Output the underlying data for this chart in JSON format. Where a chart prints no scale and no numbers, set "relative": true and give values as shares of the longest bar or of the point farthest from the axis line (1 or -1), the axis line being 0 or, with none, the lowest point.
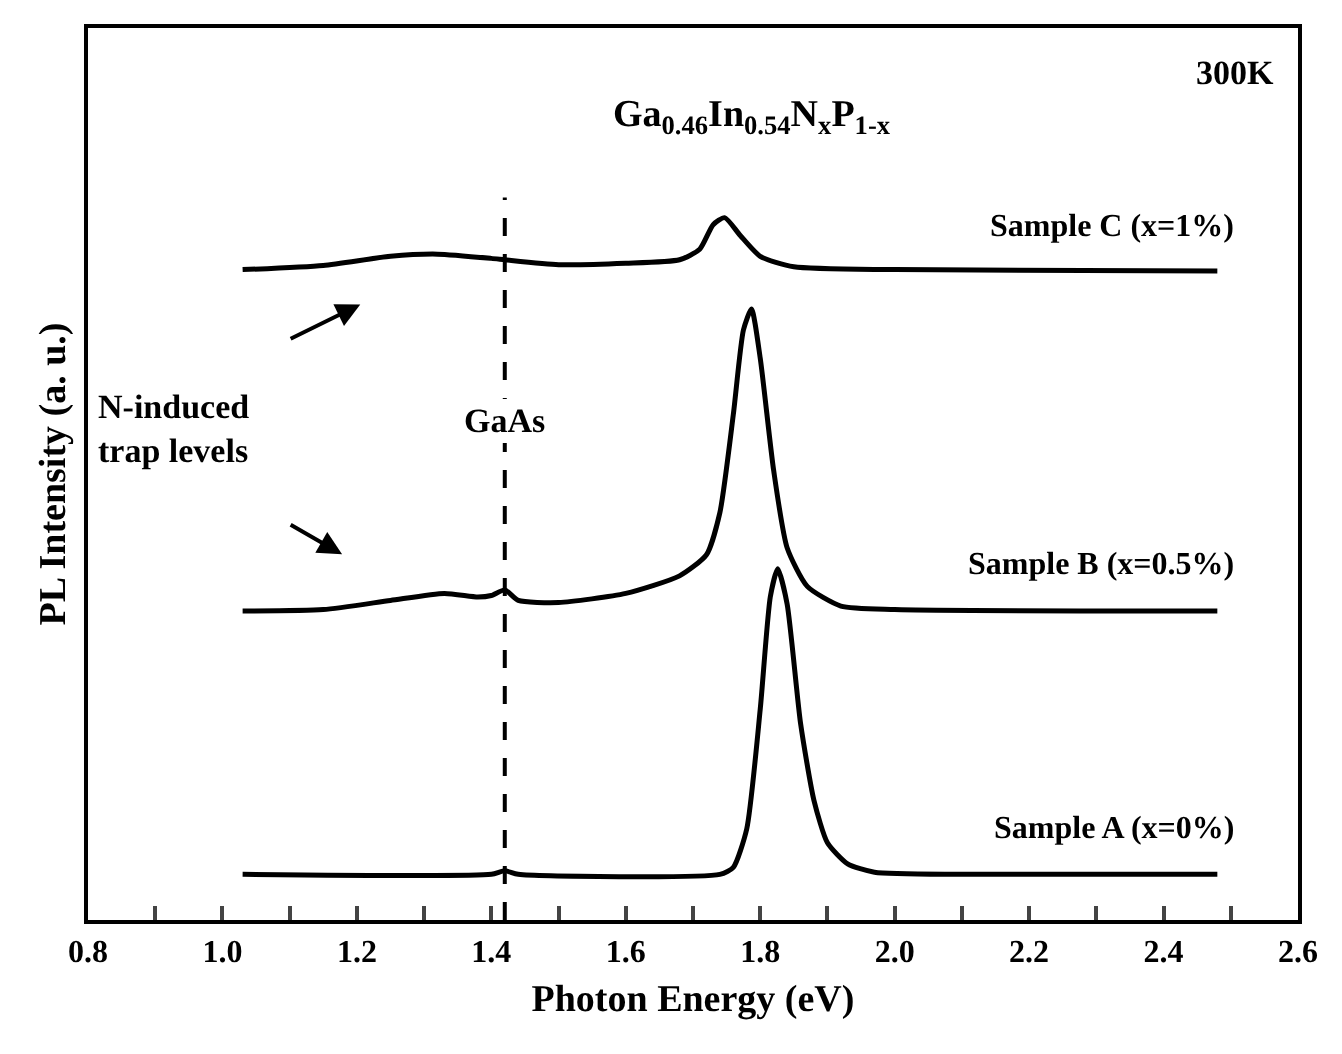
{
  "chart_data": {
    "type": "line",
    "relative": true,
    "title": "Ga$_{0.46}$In$_{0.54}$N$_{x}$P$_{1-x}$",
    "xlabel": "Photon Energy (eV)",
    "ylabel": "PL Intensity (a. u.)",
    "annotations": [
      "300K",
      "N-induced\ntrap levels"
    ],
    "xlim": [
      0.8,
      2.6
    ],
    "xticks": [
      0.8,
      {
        "value": 0.9,
        "label": null
      },
      {
        "value": 1.0,
        "label": "1.0"
      },
      {
        "value": 1.1,
        "label": null
      },
      1.2,
      {
        "value": 1.3,
        "label": null
      },
      1.4,
      {
        "value": 1.5,
        "label": null
      },
      1.6,
      {
        "value": 1.7,
        "label": null
      },
      1.8,
      {
        "value": 1.9,
        "label": null
      },
      {
        "value": 2.0,
        "label": "2.0"
      },
      {
        "value": 2.1,
        "label": null
      },
      2.2,
      {
        "value": 2.3,
        "label": null
      },
      2.4,
      {
        "value": 2.5,
        "label": null
      },
      2.6
    ],
    "grid": false,
    "legend": false,
    "line_style": "solid",
    "marker": "none",
    "ref_lines": [
      {
        "axis": "x",
        "value": 1.42,
        "label": "GaAs",
        "line_style": "dashed",
        "color": "#000000"
      }
    ],
    "series": [
      {
        "name": "Sample A (x=0%)",
        "color": "#000000",
        "x": [
          1.03,
          1.4,
          1.42,
          1.44,
          1.74,
          1.76,
          1.78,
          1.8,
          1.815,
          1.826,
          1.84,
          1.86,
          1.88,
          1.9,
          1.93,
          1.97,
          2.1,
          2.48
        ],
        "values": [
          0.065,
          0.065,
          0.07,
          0.065,
          0.065,
          0.075,
          0.13,
          0.3,
          0.46,
          0.5,
          0.45,
          0.28,
          0.17,
          0.11,
          0.08,
          0.068,
          0.065,
          0.065
        ]
      },
      {
        "name": "Sample B (x=0.5%)",
        "color": "#000000",
        "x": [
          1.03,
          1.15,
          1.25,
          1.33,
          1.38,
          1.4,
          1.42,
          1.44,
          1.5,
          1.6,
          1.68,
          1.72,
          1.74,
          1.76,
          1.775,
          1.787,
          1.8,
          1.82,
          1.84,
          1.87,
          1.92,
          2.0,
          2.48
        ],
        "values": [
          0.44,
          0.442,
          0.455,
          0.465,
          0.46,
          0.462,
          0.47,
          0.455,
          0.452,
          0.465,
          0.49,
          0.52,
          0.58,
          0.72,
          0.84,
          0.87,
          0.8,
          0.64,
          0.53,
          0.475,
          0.447,
          0.442,
          0.44
        ]
      },
      {
        "name": "Sample C (x=1%)",
        "color": "#000000",
        "x": [
          1.03,
          1.15,
          1.25,
          1.32,
          1.4,
          1.42,
          1.5,
          1.6,
          1.68,
          1.71,
          1.73,
          1.747,
          1.77,
          1.8,
          1.85,
          2.0,
          2.48
        ],
        "values": [
          0.926,
          0.932,
          0.945,
          0.948,
          0.942,
          0.94,
          0.933,
          0.935,
          0.94,
          0.955,
          0.99,
          1.0,
          0.975,
          0.945,
          0.93,
          0.926,
          0.924
        ]
      }
    ]
  }
}
